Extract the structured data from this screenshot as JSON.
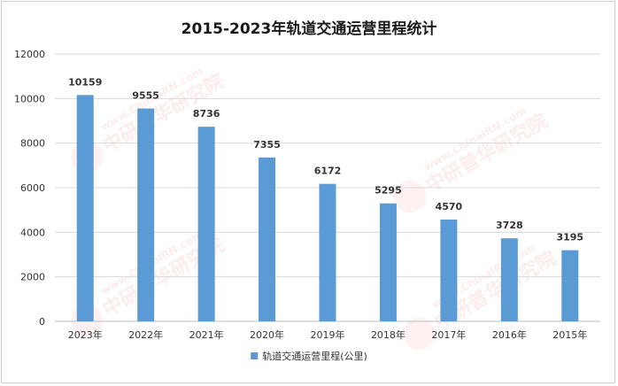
{
  "chart_data": {
    "type": "bar",
    "title": "2015-2023年轨道交通运营里程统计",
    "categories": [
      "2023年",
      "2022年",
      "2021年",
      "2020年",
      "2019年",
      "2018年",
      "2017年",
      "2016年",
      "2015年"
    ],
    "series": [
      {
        "name": "轨道交通运营里程(公里)",
        "values": [
          10159,
          9555,
          8736,
          7355,
          6172,
          5295,
          4570,
          3728,
          3195
        ]
      }
    ],
    "ylim": [
      0,
      12000
    ],
    "yticks": [
      0,
      2000,
      4000,
      6000,
      8000,
      10000,
      12000
    ],
    "grid": true,
    "legend_position": "bottom",
    "bar_color": "#5b9bd5"
  },
  "watermark": {
    "text": "中研普华研究院",
    "url": "www.ChinaIRN.com",
    "logo": "CIRN"
  }
}
